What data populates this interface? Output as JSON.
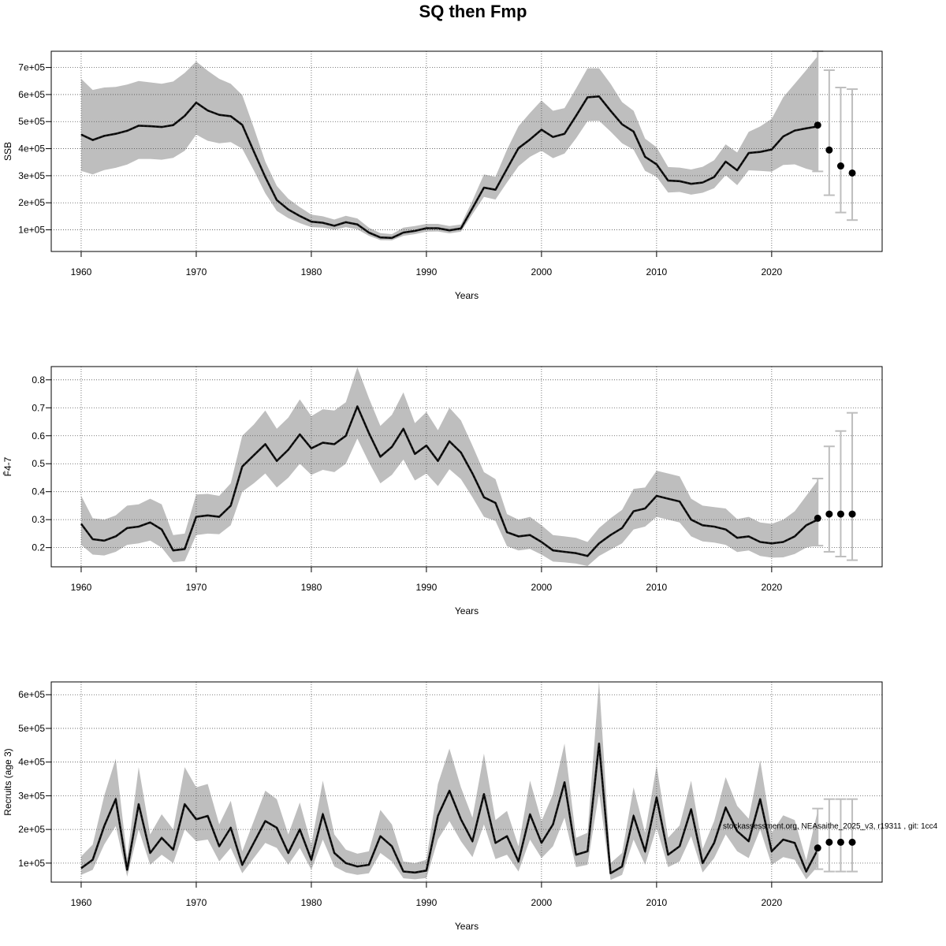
{
  "title": "SQ then Fmp",
  "credit": "stockassessment.org, NEAsaithe_2025_v3, r19311 , git: 1cc4",
  "colors": {
    "band": "#bebebe",
    "line": "#1a1a1a",
    "whisker": "#bebebe",
    "point": "#000000",
    "grid": "#555555"
  },
  "chart_data": [
    {
      "type": "line",
      "xlabel": "Years",
      "ylabel": "SSB",
      "xlim": [
        1957.4,
        2029.6
      ],
      "ylim": [
        20000,
        760000
      ],
      "xticks": [
        1960,
        1970,
        1980,
        1990,
        2000,
        2010,
        2020
      ],
      "yticks": [
        100000,
        200000,
        300000,
        400000,
        500000,
        600000,
        700000
      ],
      "ytick_labels": [
        "1e+05",
        "2e+05",
        "3e+05",
        "4e+05",
        "5e+05",
        "6e+05",
        "7e+05"
      ],
      "x": [
        1960,
        1961,
        1962,
        1963,
        1964,
        1965,
        1966,
        1967,
        1968,
        1969,
        1970,
        1971,
        1972,
        1973,
        1974,
        1975,
        1976,
        1977,
        1978,
        1979,
        1980,
        1981,
        1982,
        1983,
        1984,
        1985,
        1986,
        1987,
        1988,
        1989,
        1990,
        1991,
        1992,
        1993,
        1994,
        1995,
        1996,
        1997,
        1998,
        1999,
        2000,
        2001,
        2002,
        2003,
        2004,
        2005,
        2006,
        2007,
        2008,
        2009,
        2010,
        2011,
        2012,
        2013,
        2014,
        2015,
        2016,
        2017,
        2018,
        2019,
        2020,
        2021,
        2022,
        2023,
        2024
      ],
      "estimate": [
        452000,
        432000,
        447000,
        455000,
        466000,
        485000,
        483000,
        480000,
        487000,
        521000,
        570000,
        541000,
        525000,
        520000,
        488000,
        390000,
        295000,
        210000,
        175000,
        151000,
        130000,
        126000,
        115000,
        128000,
        120000,
        90000,
        72000,
        70000,
        90000,
        96000,
        106000,
        106000,
        98000,
        105000,
        180000,
        256000,
        248000,
        325000,
        402000,
        434000,
        470000,
        443000,
        455000,
        521000,
        590000,
        593000,
        540000,
        490000,
        463000,
        370000,
        342000,
        282000,
        280000,
        270000,
        275000,
        295000,
        352000,
        320000,
        384000,
        388000,
        397000,
        445000,
        467000,
        475000,
        482000
      ],
      "lower": [
        318000,
        305000,
        321000,
        329000,
        341000,
        362000,
        362000,
        359000,
        366000,
        392000,
        452000,
        429000,
        420000,
        424000,
        400000,
        320000,
        235000,
        170000,
        143000,
        125000,
        110000,
        108000,
        100000,
        110000,
        102000,
        78000,
        62000,
        61000,
        78000,
        84000,
        93000,
        94000,
        87000,
        93000,
        158000,
        222000,
        212000,
        275000,
        335000,
        370000,
        392000,
        365000,
        382000,
        438000,
        502000,
        503000,
        463000,
        420000,
        396000,
        318000,
        296000,
        238000,
        240000,
        230000,
        237000,
        254000,
        302000,
        265000,
        320000,
        318000,
        315000,
        340000,
        342000,
        326000,
        315000
      ],
      "upper": [
        658000,
        617000,
        626000,
        628000,
        637000,
        650000,
        645000,
        640000,
        648000,
        680000,
        722000,
        688000,
        658000,
        640000,
        598000,
        478000,
        352000,
        262000,
        215000,
        184000,
        156000,
        150000,
        138000,
        152000,
        142000,
        108000,
        88000,
        84000,
        108000,
        114000,
        122000,
        122000,
        114000,
        120000,
        208000,
        305000,
        296000,
        396000,
        483000,
        532000,
        578000,
        540000,
        550000,
        622000,
        697000,
        697000,
        640000,
        572000,
        540000,
        437000,
        405000,
        332000,
        330000,
        323000,
        333000,
        357000,
        416000,
        386000,
        462000,
        482000,
        510000,
        590000,
        640000,
        690000,
        742000
      ],
      "forecast": {
        "x": [
          2024,
          2025,
          2026,
          2027
        ],
        "median": [
          487000,
          395000,
          336000,
          310000
        ],
        "lower": [
          316000,
          228000,
          164000,
          136000
        ],
        "upper": [
          760000,
          690000,
          626000,
          620000
        ]
      }
    },
    {
      "type": "line",
      "xlabel": "Years",
      "ylabel": "F̄4-7",
      "xlim": [
        1957.4,
        2029.6
      ],
      "ylim": [
        0.1313,
        0.8474
      ],
      "xticks": [
        1960,
        1970,
        1980,
        1990,
        2000,
        2010,
        2020
      ],
      "yticks": [
        0.2,
        0.3,
        0.4,
        0.5,
        0.6,
        0.7,
        0.8
      ],
      "ytick_labels": [
        "0.2",
        "0.3",
        "0.4",
        "0.5",
        "0.6",
        "0.7",
        "0.8"
      ],
      "x": [
        1960,
        1961,
        1962,
        1963,
        1964,
        1965,
        1966,
        1967,
        1968,
        1969,
        1970,
        1971,
        1972,
        1973,
        1974,
        1975,
        1976,
        1977,
        1978,
        1979,
        1980,
        1981,
        1982,
        1983,
        1984,
        1985,
        1986,
        1987,
        1988,
        1989,
        1990,
        1991,
        1992,
        1993,
        1994,
        1995,
        1996,
        1997,
        1998,
        1999,
        2000,
        2001,
        2002,
        2003,
        2004,
        2005,
        2006,
        2007,
        2008,
        2009,
        2010,
        2011,
        2012,
        2013,
        2014,
        2015,
        2016,
        2017,
        2018,
        2019,
        2020,
        2021,
        2022,
        2023,
        2024
      ],
      "estimate": [
        0.285,
        0.23,
        0.225,
        0.24,
        0.27,
        0.275,
        0.29,
        0.265,
        0.19,
        0.195,
        0.31,
        0.315,
        0.31,
        0.35,
        0.49,
        0.53,
        0.57,
        0.51,
        0.55,
        0.605,
        0.555,
        0.575,
        0.57,
        0.6,
        0.705,
        0.61,
        0.525,
        0.56,
        0.625,
        0.535,
        0.565,
        0.51,
        0.58,
        0.54,
        0.465,
        0.38,
        0.36,
        0.255,
        0.24,
        0.245,
        0.22,
        0.19,
        0.185,
        0.18,
        0.17,
        0.215,
        0.245,
        0.27,
        0.33,
        0.34,
        0.385,
        0.375,
        0.365,
        0.3,
        0.28,
        0.275,
        0.265,
        0.235,
        0.24,
        0.22,
        0.215,
        0.22,
        0.24,
        0.28,
        0.3
      ],
      "lower": [
        0.21,
        0.175,
        0.172,
        0.185,
        0.21,
        0.215,
        0.225,
        0.2,
        0.148,
        0.152,
        0.245,
        0.25,
        0.248,
        0.28,
        0.4,
        0.43,
        0.465,
        0.415,
        0.45,
        0.5,
        0.46,
        0.478,
        0.47,
        0.5,
        0.59,
        0.505,
        0.43,
        0.46,
        0.515,
        0.44,
        0.465,
        0.42,
        0.48,
        0.445,
        0.38,
        0.31,
        0.295,
        0.205,
        0.19,
        0.195,
        0.175,
        0.15,
        0.147,
        0.143,
        0.134,
        0.17,
        0.193,
        0.215,
        0.265,
        0.275,
        0.31,
        0.3,
        0.29,
        0.24,
        0.222,
        0.218,
        0.21,
        0.184,
        0.19,
        0.17,
        0.164,
        0.165,
        0.177,
        0.2,
        0.208
      ],
      "upper": [
        0.385,
        0.305,
        0.3,
        0.315,
        0.35,
        0.355,
        0.375,
        0.355,
        0.245,
        0.25,
        0.39,
        0.392,
        0.385,
        0.43,
        0.6,
        0.64,
        0.69,
        0.625,
        0.665,
        0.73,
        0.67,
        0.695,
        0.69,
        0.72,
        0.845,
        0.735,
        0.635,
        0.675,
        0.755,
        0.645,
        0.685,
        0.62,
        0.7,
        0.655,
        0.565,
        0.47,
        0.445,
        0.32,
        0.3,
        0.31,
        0.28,
        0.245,
        0.24,
        0.235,
        0.22,
        0.27,
        0.305,
        0.335,
        0.41,
        0.415,
        0.475,
        0.465,
        0.455,
        0.375,
        0.35,
        0.345,
        0.34,
        0.302,
        0.31,
        0.29,
        0.285,
        0.3,
        0.33,
        0.385,
        0.44
      ],
      "forecast": {
        "x": [
          2024,
          2025,
          2026,
          2027
        ],
        "median": [
          0.305,
          0.32,
          0.32,
          0.32
        ],
        "lower": [
          0.207,
          0.185,
          0.168,
          0.155
        ],
        "upper": [
          0.447,
          0.562,
          0.617,
          0.682
        ]
      }
    },
    {
      "type": "line",
      "xlabel": "Years",
      "ylabel": "Recruits (age 3)",
      "xlim": [
        1957.4,
        2029.6
      ],
      "ylim": [
        43500,
        638000
      ],
      "xticks": [
        1960,
        1970,
        1980,
        1990,
        2000,
        2010,
        2020
      ],
      "yticks": [
        100000,
        200000,
        300000,
        400000,
        500000,
        600000
      ],
      "ytick_labels": [
        "1e+05",
        "2e+05",
        "3e+05",
        "4e+05",
        "5e+05",
        "6e+05"
      ],
      "x": [
        1960,
        1961,
        1962,
        1963,
        1964,
        1965,
        1966,
        1967,
        1968,
        1969,
        1970,
        1971,
        1972,
        1973,
        1974,
        1975,
        1976,
        1977,
        1978,
        1979,
        1980,
        1981,
        1982,
        1983,
        1984,
        1985,
        1986,
        1987,
        1988,
        1989,
        1990,
        1991,
        1992,
        1993,
        1994,
        1995,
        1996,
        1997,
        1998,
        1999,
        2000,
        2001,
        2002,
        2003,
        2004,
        2005,
        2006,
        2007,
        2008,
        2009,
        2010,
        2011,
        2012,
        2013,
        2014,
        2015,
        2016,
        2017,
        2018,
        2019,
        2020,
        2021,
        2022,
        2023,
        2024
      ],
      "estimate": [
        85000,
        110000,
        210000,
        290000,
        80000,
        275000,
        130000,
        175000,
        140000,
        275000,
        230000,
        240000,
        150000,
        205000,
        95000,
        160000,
        225000,
        205000,
        130000,
        200000,
        110000,
        245000,
        130000,
        100000,
        90000,
        95000,
        180000,
        150000,
        75000,
        72000,
        78000,
        240000,
        315000,
        230000,
        165000,
        305000,
        160000,
        180000,
        105000,
        245000,
        160000,
        215000,
        340000,
        125000,
        135000,
        455000,
        70000,
        90000,
        240000,
        135000,
        295000,
        125000,
        150000,
        260000,
        100000,
        160000,
        265000,
        195000,
        165000,
        290000,
        135000,
        170000,
        160000,
        75000,
        140000
      ],
      "lower": [
        65000,
        80000,
        155000,
        210000,
        60000,
        200000,
        95000,
        125000,
        100000,
        200000,
        165000,
        170000,
        105000,
        145000,
        70000,
        115000,
        160000,
        145000,
        95000,
        145000,
        80000,
        170000,
        90000,
        72000,
        65000,
        70000,
        130000,
        105000,
        55000,
        52000,
        56000,
        170000,
        225000,
        165000,
        118000,
        215000,
        112000,
        125000,
        75000,
        170000,
        115000,
        150000,
        235000,
        88000,
        95000,
        310000,
        50000,
        65000,
        170000,
        95000,
        205000,
        88000,
        105000,
        180000,
        72000,
        115000,
        185000,
        135000,
        115000,
        200000,
        95000,
        118000,
        110000,
        52000,
        90000
      ],
      "upper": [
        120000,
        155000,
        300000,
        410000,
        115000,
        385000,
        185000,
        245000,
        200000,
        385000,
        325000,
        335000,
        215000,
        285000,
        135000,
        225000,
        315000,
        290000,
        185000,
        280000,
        155000,
        345000,
        185000,
        140000,
        128000,
        135000,
        258000,
        215000,
        105000,
        100000,
        110000,
        335000,
        440000,
        325000,
        235000,
        425000,
        228000,
        255000,
        150000,
        345000,
        225000,
        305000,
        455000,
        175000,
        190000,
        640000,
        100000,
        130000,
        325000,
        190000,
        390000,
        175000,
        212000,
        345000,
        142000,
        225000,
        355000,
        270000,
        232000,
        405000,
        190000,
        242000,
        228000,
        108000,
        255000
      ],
      "forecast": {
        "x": [
          2024,
          2025,
          2026,
          2027
        ],
        "median": [
          145000,
          162000,
          162000,
          162000
        ],
        "lower": [
          82000,
          75000,
          75000,
          75000
        ],
        "upper": [
          262000,
          290000,
          290000,
          290000
        ]
      }
    }
  ]
}
